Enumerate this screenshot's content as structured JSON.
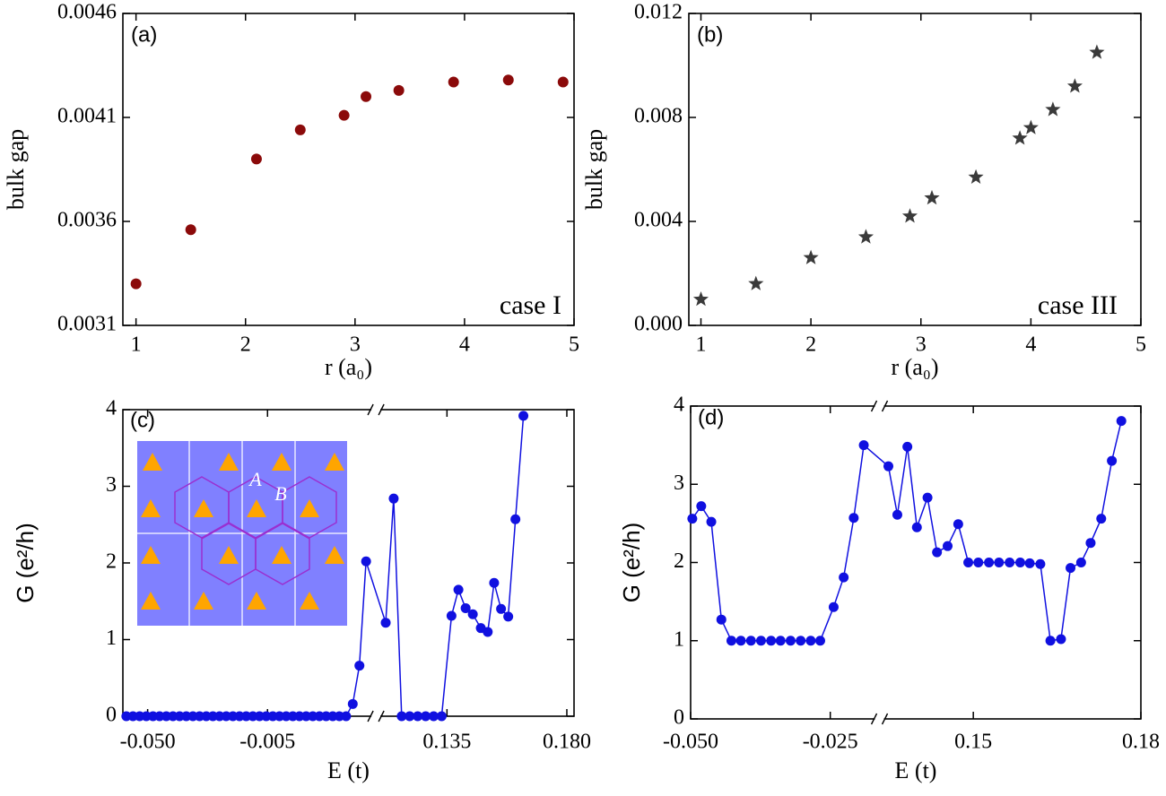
{
  "chart_data": [
    {
      "type": "scatter",
      "label": "(a)",
      "annotation": "case I",
      "xlabel": "r (a₀)",
      "ylabel": "bulk gap",
      "marker": "circle",
      "color": "#8b0a0a",
      "x": [
        1,
        1.5,
        2.1,
        2.5,
        2.9,
        3.1,
        3.4,
        3.9,
        4.4,
        4.9
      ],
      "values": [
        0.0033,
        0.00356,
        0.0039,
        0.00404,
        0.00411,
        0.0042,
        0.00423,
        0.00427,
        0.00428,
        0.00427
      ],
      "xlim": [
        0.88,
        5
      ],
      "xticks": [
        1,
        2,
        3,
        4,
        5
      ],
      "ylim": [
        0.0031,
        0.0046
      ],
      "yticks": [
        0.0031,
        0.0036,
        0.0041,
        0.0046
      ]
    },
    {
      "type": "scatter",
      "label": "(b)",
      "annotation": "case III",
      "xlabel": "r (a₀)",
      "ylabel": "bulk gap",
      "marker": "star",
      "color": "#3a3a3a",
      "x": [
        1,
        1.5,
        2,
        2.5,
        2.9,
        3.1,
        3.5,
        3.9,
        4.0,
        4.2,
        4.4,
        4.6
      ],
      "values": [
        0.001,
        0.0016,
        0.0026,
        0.0034,
        0.0042,
        0.0049,
        0.0057,
        0.0072,
        0.0076,
        0.0083,
        0.0092,
        0.0105
      ],
      "xlim": [
        0.89,
        5
      ],
      "xticks": [
        1,
        2,
        3,
        4,
        5
      ],
      "ylim": [
        0,
        0.012
      ],
      "yticks": [
        {
          "value": 0,
          "label": "0.000"
        },
        0.004,
        0.008,
        0.012
      ]
    },
    {
      "type": "line",
      "label": "(c)",
      "xlabel": "E (t)",
      "ylabel": "G (e²/h)",
      "marker": "circle",
      "color": "#1010e0",
      "x": [
        -0.058,
        -0.0555,
        -0.053,
        -0.0505,
        -0.048,
        -0.0455,
        -0.043,
        -0.0405,
        -0.038,
        -0.0355,
        -0.033,
        -0.0305,
        -0.028,
        -0.0255,
        -0.023,
        -0.0205,
        -0.018,
        -0.0155,
        -0.013,
        -0.0105,
        -0.008,
        -0.0055,
        -0.003,
        -0.0005,
        0.002,
        0.0045,
        0.007,
        0.0095,
        0.012,
        0.0145,
        0.017,
        0.0195,
        0.022,
        0.0245,
        0.027,
        0.0295,
        0.032,
        0.112,
        0.115,
        0.118,
        0.121,
        0.124,
        0.127,
        0.13,
        0.133,
        0.1367,
        0.1393,
        0.142,
        0.1447,
        0.1477,
        0.1503,
        0.1527,
        0.1553,
        0.158,
        0.1607,
        0.1637
      ],
      "values": [
        0,
        0,
        0,
        0,
        0,
        0,
        0,
        0,
        0,
        0,
        0,
        0,
        0,
        0,
        0,
        0,
        0,
        0,
        0,
        0,
        0,
        0,
        0,
        0,
        0,
        0,
        0,
        0,
        0,
        0,
        0,
        0,
        0,
        0,
        0.16,
        0.66,
        2.02,
        1.22,
        2.84,
        0,
        0,
        0,
        0,
        0,
        0,
        1.31,
        1.65,
        1.41,
        1.33,
        1.15,
        1.1,
        1.74,
        1.4,
        1.3,
        2.57,
        3.92
      ],
      "xlim": [
        [
          -0.0593,
          0.034
        ],
        [
          0.11,
          0.1827
        ]
      ],
      "xticks": [
        {
          "value": -0.05,
          "label": "-0.050"
        },
        -0.005,
        0.135,
        {
          "value": 0.18,
          "label": "0.180"
        }
      ],
      "ylim": [
        0,
        4
      ],
      "yticks": [
        0,
        1,
        2,
        3,
        4
      ]
    },
    {
      "type": "line",
      "label": "(d)",
      "xlabel": "E (t)",
      "ylabel": "G (e²/h)",
      "marker": "circle",
      "color": "#1010e0",
      "x": [
        -0.0497,
        -0.0481,
        -0.0463,
        -0.0445,
        -0.0427,
        -0.041,
        -0.0392,
        -0.0374,
        -0.0356,
        -0.0339,
        -0.0321,
        -0.0303,
        -0.0285,
        -0.0268,
        -0.0244,
        -0.0226,
        -0.0208,
        -0.019,
        0.1348,
        0.1364,
        0.1382,
        0.1399,
        0.1418,
        0.1435,
        0.1454,
        0.1473,
        0.1491,
        0.1509,
        0.1528,
        0.1546,
        0.1565,
        0.1584,
        0.1601,
        0.162,
        0.1638,
        0.1657,
        0.1674,
        0.1693,
        0.171,
        0.1729,
        0.1748,
        0.1765
      ],
      "values": [
        2.56,
        2.72,
        2.52,
        1.27,
        1,
        1,
        1,
        1,
        1,
        1,
        1,
        1,
        1,
        1,
        1.43,
        1.81,
        2.57,
        3.5,
        3.23,
        2.61,
        3.48,
        2.45,
        2.83,
        2.13,
        2.21,
        2.49,
        2,
        2,
        2,
        2,
        2,
        2,
        1.99,
        1.98,
        1,
        1.02,
        1.93,
        2,
        2.25,
        2.56,
        3.3,
        3.81
      ],
      "xlim": [
        [
          -0.05,
          -0.017
        ],
        [
          0.134,
          0.18
        ]
      ],
      "xticks": [
        {
          "value": -0.05,
          "label": "-0.050"
        },
        -0.025,
        0.15,
        0.18
      ],
      "ylim": [
        0,
        4
      ],
      "yticks": [
        0,
        1,
        2,
        3,
        4
      ]
    }
  ],
  "inset": {
    "labels": [
      "A",
      "B"
    ]
  }
}
